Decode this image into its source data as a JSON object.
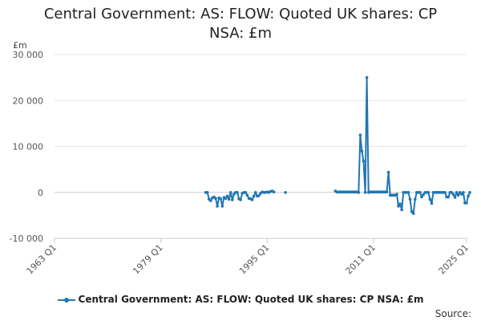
{
  "chart_data": {
    "type": "line",
    "title_lines": [
      "Central Government: AS: FLOW: Quoted UK shares: CP",
      "NSA: £m"
    ],
    "y_unit": "£m",
    "xlabel": "",
    "ylabel": "",
    "x_ticks": [
      "1963 Q1",
      "1979 Q1",
      "1995 Q1",
      "2011 Q1",
      "2025 Q1"
    ],
    "x_tick_years": [
      1963,
      1979,
      1995,
      2011,
      2025
    ],
    "xlim": [
      1963,
      2025
    ],
    "y_ticks": [
      30000,
      20000,
      10000,
      0,
      -10000
    ],
    "y_tick_labels": [
      "30 000",
      "20 000",
      "10 000",
      "0",
      "-10 000"
    ],
    "ylim": [
      -10000,
      30000
    ],
    "grid": true,
    "legend_position": "bottom",
    "series": [
      {
        "name": "Central Government: AS: FLOW: Quoted UK shares: CP NSA: £m",
        "color": "#2076b4",
        "segments": [
          [
            [
              1985.75,
              0
            ],
            [
              1986.0,
              0
            ],
            [
              1986.25,
              -1500
            ],
            [
              1986.5,
              -1800
            ],
            [
              1986.75,
              -1200
            ],
            [
              1987.0,
              -1000
            ],
            [
              1987.25,
              -1300
            ],
            [
              1987.5,
              -3000
            ],
            [
              1987.75,
              -1200
            ],
            [
              1988.0,
              -1400
            ],
            [
              1988.25,
              -3000
            ],
            [
              1988.5,
              -1100
            ],
            [
              1988.75,
              -1300
            ],
            [
              1989.0,
              -800
            ],
            [
              1989.25,
              -1500
            ],
            [
              1989.5,
              0
            ],
            [
              1989.75,
              -1600
            ],
            [
              1990.0,
              -400
            ],
            [
              1990.25,
              0
            ],
            [
              1990.5,
              0
            ],
            [
              1990.75,
              -1400
            ],
            [
              1991.0,
              -1600
            ],
            [
              1991.25,
              -200
            ],
            [
              1991.5,
              0
            ],
            [
              1991.75,
              0
            ],
            [
              1992.0,
              -600
            ],
            [
              1992.25,
              -1300
            ],
            [
              1992.5,
              -1400
            ],
            [
              1992.75,
              -1600
            ],
            [
              1993.0,
              -800
            ],
            [
              1993.25,
              0
            ],
            [
              1993.5,
              -800
            ],
            [
              1993.75,
              -700
            ],
            [
              1994.0,
              -200
            ],
            [
              1994.25,
              100
            ],
            [
              1994.5,
              0
            ],
            [
              1994.75,
              0
            ],
            [
              1995.0,
              100
            ],
            [
              1995.25,
              0
            ],
            [
              1995.5,
              200
            ],
            [
              1995.75,
              300
            ],
            [
              1996.0,
              100
            ]
          ],
          [
            [
              1997.75,
              0
            ]
          ],
          [
            [
              2005.25,
              300
            ],
            [
              2005.5,
              100
            ],
            [
              2005.75,
              100
            ],
            [
              2006.0,
              100
            ],
            [
              2006.25,
              100
            ],
            [
              2006.5,
              100
            ],
            [
              2006.75,
              100
            ],
            [
              2007.0,
              100
            ],
            [
              2007.25,
              100
            ],
            [
              2007.5,
              100
            ],
            [
              2007.75,
              100
            ],
            [
              2008.0,
              100
            ],
            [
              2008.25,
              100
            ],
            [
              2008.5,
              100
            ],
            [
              2008.75,
              0
            ],
            [
              2009.0,
              12500
            ],
            [
              2009.25,
              9000
            ],
            [
              2009.5,
              6800
            ],
            [
              2009.75,
              0
            ],
            [
              2010.0,
              25000
            ],
            [
              2010.25,
              0
            ],
            [
              2010.5,
              100
            ],
            [
              2010.75,
              100
            ],
            [
              2011.0,
              100
            ],
            [
              2011.25,
              100
            ],
            [
              2011.5,
              100
            ],
            [
              2011.75,
              100
            ],
            [
              2012.0,
              100
            ],
            [
              2012.25,
              100
            ],
            [
              2012.5,
              100
            ],
            [
              2012.75,
              100
            ],
            [
              2013.0,
              100
            ],
            [
              2013.25,
              4400
            ],
            [
              2013.5,
              -600
            ],
            [
              2013.75,
              -600
            ],
            [
              2014.0,
              -600
            ],
            [
              2014.25,
              -600
            ],
            [
              2014.5,
              -400
            ],
            [
              2014.75,
              -3000
            ],
            [
              2015.0,
              -2500
            ],
            [
              2015.25,
              -3800
            ],
            [
              2015.5,
              0
            ],
            [
              2015.75,
              0
            ],
            [
              2016.0,
              0
            ],
            [
              2016.25,
              0
            ],
            [
              2016.5,
              -1500
            ],
            [
              2016.75,
              -4200
            ],
            [
              2017.0,
              -4600
            ],
            [
              2017.25,
              -1500
            ],
            [
              2017.5,
              0
            ],
            [
              2017.75,
              0
            ],
            [
              2018.0,
              0
            ],
            [
              2018.25,
              -1000
            ],
            [
              2018.5,
              -500
            ],
            [
              2018.75,
              0
            ],
            [
              2019.0,
              0
            ],
            [
              2019.25,
              0
            ],
            [
              2019.5,
              -1500
            ],
            [
              2019.75,
              -2400
            ],
            [
              2020.0,
              0
            ],
            [
              2020.25,
              0
            ],
            [
              2020.5,
              0
            ],
            [
              2020.75,
              0
            ],
            [
              2021.0,
              0
            ],
            [
              2021.25,
              0
            ],
            [
              2021.5,
              0
            ],
            [
              2021.75,
              0
            ],
            [
              2022.0,
              -1000
            ],
            [
              2022.25,
              -1000
            ],
            [
              2022.5,
              0
            ],
            [
              2022.75,
              0
            ],
            [
              2023.0,
              -400
            ],
            [
              2023.25,
              -1100
            ],
            [
              2023.5,
              0
            ],
            [
              2023.75,
              -600
            ],
            [
              2024.0,
              0
            ],
            [
              2024.25,
              -400
            ],
            [
              2024.5,
              0
            ],
            [
              2024.75,
              -2300
            ],
            [
              2025.0,
              -2300
            ],
            [
              2025.25,
              -800
            ],
            [
              2025.5,
              0
            ]
          ]
        ]
      }
    ]
  },
  "legend": {
    "label": "Central Government: AS: FLOW: Quoted UK shares: CP NSA: £m"
  },
  "footer": {
    "source_label": "Source:"
  }
}
